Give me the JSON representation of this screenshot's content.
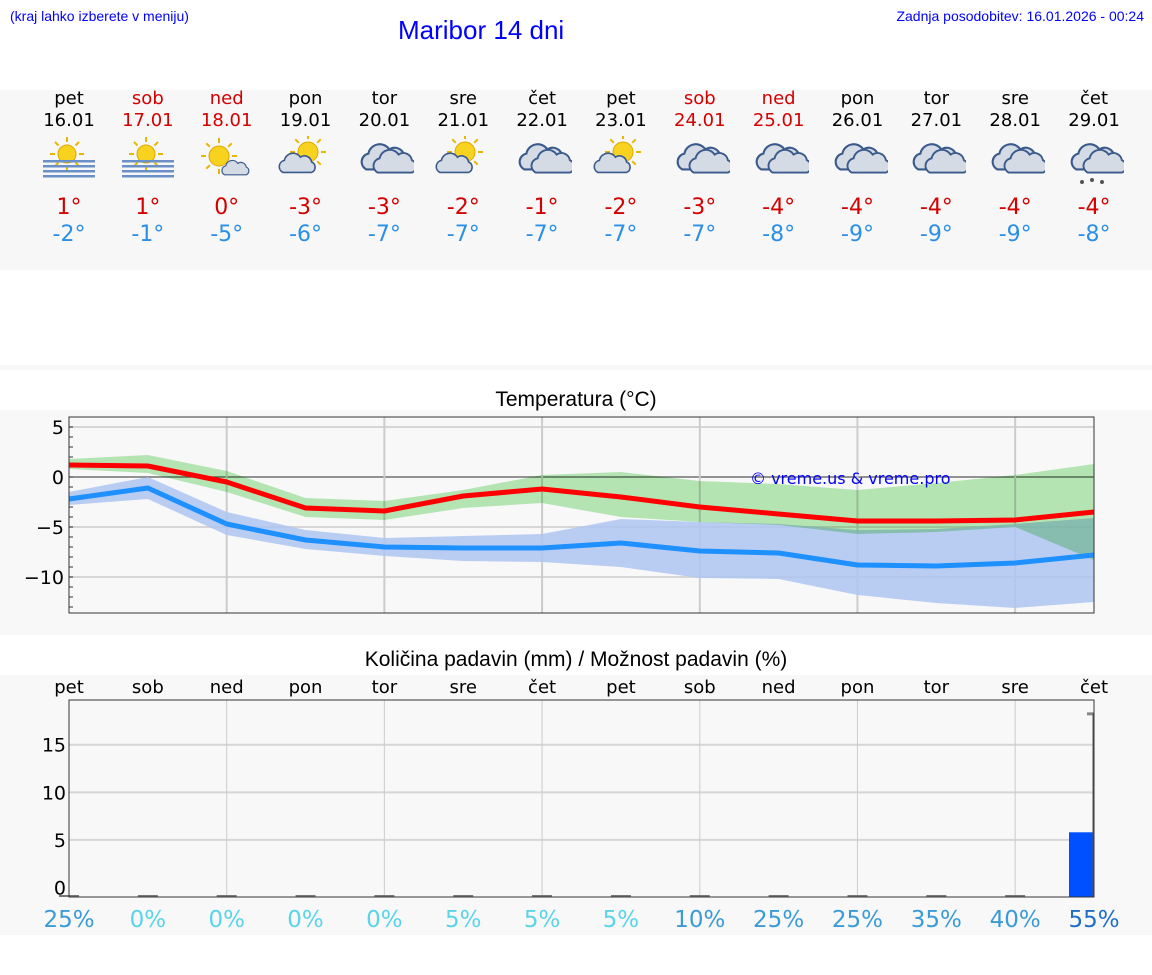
{
  "header": {
    "hint": "(kraj lahko izberete v meniju)",
    "title": "Maribor 14 dni",
    "updated": "Zadnja posodobitev: 16.01.2026 - 00:24"
  },
  "days": [
    {
      "dow": "pet",
      "date": "16.01",
      "weekend": false,
      "icon": "sun-fog",
      "max": "1°",
      "min": "-2°"
    },
    {
      "dow": "sob",
      "date": "17.01",
      "weekend": true,
      "icon": "sun-fog",
      "max": "1°",
      "min": "-1°"
    },
    {
      "dow": "ned",
      "date": "18.01",
      "weekend": true,
      "icon": "sun-small-cloud",
      "max": "0°",
      "min": "-5°"
    },
    {
      "dow": "pon",
      "date": "19.01",
      "weekend": false,
      "icon": "sun-cloud",
      "max": "-3°",
      "min": "-6°"
    },
    {
      "dow": "tor",
      "date": "20.01",
      "weekend": false,
      "icon": "cloudy",
      "max": "-3°",
      "min": "-7°"
    },
    {
      "dow": "sre",
      "date": "21.01",
      "weekend": false,
      "icon": "sun-cloud",
      "max": "-2°",
      "min": "-7°"
    },
    {
      "dow": "čet",
      "date": "22.01",
      "weekend": false,
      "icon": "cloudy",
      "max": "-1°",
      "min": "-7°"
    },
    {
      "dow": "pet",
      "date": "23.01",
      "weekend": false,
      "icon": "sun-cloud",
      "max": "-2°",
      "min": "-7°"
    },
    {
      "dow": "sob",
      "date": "24.01",
      "weekend": true,
      "icon": "cloudy",
      "max": "-3°",
      "min": "-7°"
    },
    {
      "dow": "ned",
      "date": "25.01",
      "weekend": true,
      "icon": "cloudy",
      "max": "-4°",
      "min": "-8°"
    },
    {
      "dow": "pon",
      "date": "26.01",
      "weekend": false,
      "icon": "cloudy",
      "max": "-4°",
      "min": "-9°"
    },
    {
      "dow": "tor",
      "date": "27.01",
      "weekend": false,
      "icon": "cloudy",
      "max": "-4°",
      "min": "-9°"
    },
    {
      "dow": "sre",
      "date": "28.01",
      "weekend": false,
      "icon": "cloudy",
      "max": "-4°",
      "min": "-9°"
    },
    {
      "dow": "čet",
      "date": "29.01",
      "weekend": false,
      "icon": "cloud-snow",
      "max": "-4°",
      "min": "-8°"
    }
  ],
  "colors": {
    "weekend": "#d40000",
    "weekday": "#000000",
    "max": "#ff0000",
    "min": "#1e90ff",
    "max_band": "#aee8ac",
    "min_band": "#aec6f2",
    "bar": "#0050ff"
  },
  "chart_data": [
    {
      "type": "line",
      "title": "Temperatura (°C)",
      "ylim": [
        -13.6,
        6
      ],
      "yticks": [
        "5",
        "0",
        "−5",
        "−10"
      ],
      "ytick_values": [
        5,
        0,
        -5,
        -10
      ],
      "watermark": "© vreme.us & vreme.pro",
      "series": [
        {
          "name": "max",
          "values": [
            1.2,
            1.1,
            -0.5,
            -3.1,
            -3.4,
            -1.9,
            -1.2,
            -2.0,
            -3.0,
            -3.7,
            -4.4,
            -4.4,
            -4.3,
            -3.5
          ],
          "upper": [
            1.8,
            2.2,
            0.6,
            -2.1,
            -2.4,
            -1.3,
            0.2,
            0.5,
            -0.4,
            -0.7,
            -1.3,
            -0.6,
            0.2,
            1.3
          ],
          "lower": [
            0.8,
            0.4,
            -1.5,
            -4.0,
            -4.3,
            -3.1,
            -2.6,
            -4.0,
            -4.5,
            -4.8,
            -5.7,
            -5.5,
            -5.0,
            -8.3
          ]
        },
        {
          "name": "min",
          "values": [
            -2.2,
            -1.1,
            -4.7,
            -6.3,
            -7.0,
            -7.1,
            -7.1,
            -6.6,
            -7.4,
            -7.6,
            -8.8,
            -8.9,
            -8.6,
            -7.8
          ],
          "upper": [
            -1.5,
            0.0,
            -3.5,
            -5.3,
            -6.1,
            -5.9,
            -5.7,
            -4.2,
            -4.5,
            -4.7,
            -5.3,
            -5.2,
            -4.7,
            -4.1
          ],
          "lower": [
            -2.8,
            -2.2,
            -5.8,
            -7.2,
            -7.9,
            -8.4,
            -8.5,
            -9.0,
            -10.1,
            -10.2,
            -11.8,
            -12.6,
            -13.1,
            -12.5
          ]
        }
      ]
    },
    {
      "type": "bar",
      "title": "Količina padavin (mm) / Možnost padavin (%)",
      "ylim": [
        -1,
        19.7
      ],
      "yticks": [
        "15",
        "10",
        "5",
        "0"
      ],
      "ytick_values": [
        15,
        10,
        5,
        0
      ],
      "categories": [
        "pet",
        "sob",
        "ned",
        "pon",
        "tor",
        "sre",
        "čet",
        "pet",
        "sob",
        "ned",
        "pon",
        "tor",
        "sre",
        "čet"
      ],
      "values": [
        0,
        0,
        0,
        0,
        0,
        0,
        0,
        0,
        0,
        0,
        0,
        0,
        0,
        5.8
      ],
      "max_marker": [
        null,
        null,
        null,
        null,
        null,
        null,
        null,
        null,
        null,
        null,
        null,
        null,
        null,
        18.3
      ],
      "probability": [
        "25%",
        "0%",
        "0%",
        "0%",
        "0%",
        "5%",
        "5%",
        "5%",
        "10%",
        "25%",
        "25%",
        "35%",
        "40%",
        "55%"
      ],
      "probability_colors": [
        "#3a9bd8",
        "#5ad4e8",
        "#5ad4e8",
        "#5ad4e8",
        "#5ad4e8",
        "#5ad4e8",
        "#5ad4e8",
        "#5ad4e8",
        "#3a9bd8",
        "#3a9bd8",
        "#3a9bd8",
        "#3a9bd8",
        "#3a9bd8",
        "#1f6fc6"
      ]
    }
  ]
}
